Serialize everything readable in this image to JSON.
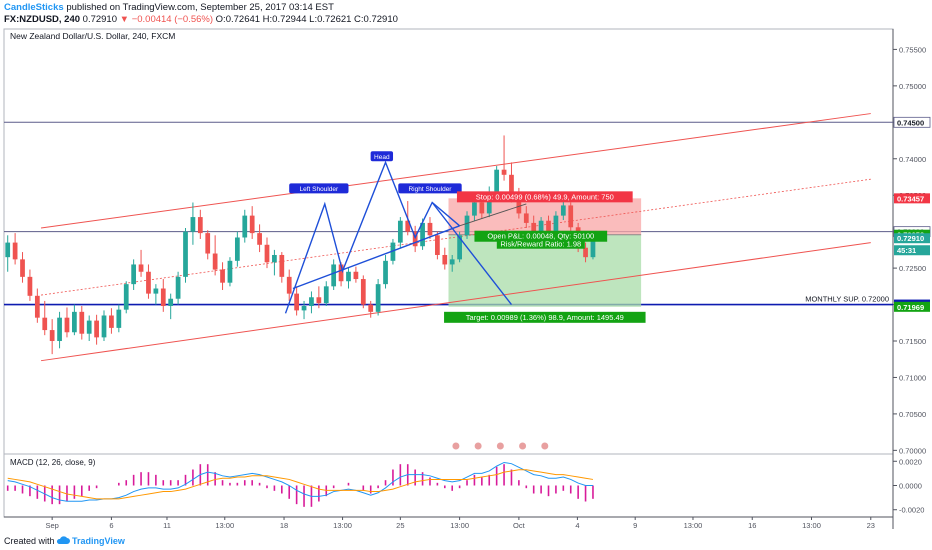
{
  "header": {
    "author": "CandleSticks",
    "published": "published on TradingView.com, September 25, 2017 03:14 EST",
    "symbol": "FX:NZDUSD, 240",
    "last": "0.72910",
    "change": "−0.00414 (−0.56%)",
    "ohlc": "O:0.72641 H:0.72944 L:0.72621 C:0.72910"
  },
  "footer": {
    "created": "Created with",
    "brand": "TradingView"
  },
  "colors": {
    "up": "#26a69a",
    "down": "#ef5350",
    "channel": "#ef5350",
    "pattern": "#1e4fd8",
    "support": "#0d1bb0",
    "stop_zone": "#f8a5a5",
    "target_zone": "#a8dca8",
    "macd": "#2196f3",
    "signal": "#ff9800"
  },
  "chart_data": [
    {
      "type": "candlestick",
      "title": "New Zealand Dollar/U.S. Dollar, 240, FXCM",
      "ylim": [
        0.6995,
        0.7578
      ],
      "price_ticks": [
        "0.75500",
        "0.75000",
        "0.74500",
        "0.74000",
        "0.73500",
        "0.73000",
        "0.72500",
        "0.72000",
        "0.71500",
        "0.71000",
        "0.70500",
        "0.70000"
      ],
      "price_tick_values": [
        0.755,
        0.75,
        0.745,
        0.74,
        0.735,
        0.73,
        0.725,
        0.72,
        0.715,
        0.71,
        0.705,
        0.7
      ],
      "time_labels": [
        "Sep",
        "6",
        "11",
        "13:00",
        "18",
        "13:00",
        "25",
        "13:00",
        "Oct",
        "4",
        "9",
        "13:00",
        "16",
        "13:00",
        "23"
      ],
      "time_label_positions": [
        6.5,
        14.5,
        22,
        29.8,
        37.8,
        45.7,
        53.5,
        61.5,
        69.5,
        77.4,
        85.2,
        93,
        101,
        109,
        117
      ],
      "bar_count": 120,
      "candles": [
        {
          "o": 0.7265,
          "h": 0.7295,
          "l": 0.7245,
          "c": 0.7285
        },
        {
          "o": 0.7285,
          "h": 0.7298,
          "l": 0.7255,
          "c": 0.7262
        },
        {
          "o": 0.7262,
          "h": 0.7272,
          "l": 0.723,
          "c": 0.7238
        },
        {
          "o": 0.7238,
          "h": 0.7248,
          "l": 0.7205,
          "c": 0.7212
        },
        {
          "o": 0.7212,
          "h": 0.7222,
          "l": 0.7175,
          "c": 0.7182
        },
        {
          "o": 0.7182,
          "h": 0.7205,
          "l": 0.7158,
          "c": 0.7165
        },
        {
          "o": 0.7165,
          "h": 0.718,
          "l": 0.7132,
          "c": 0.715
        },
        {
          "o": 0.715,
          "h": 0.719,
          "l": 0.714,
          "c": 0.7182
        },
        {
          "o": 0.7182,
          "h": 0.7196,
          "l": 0.7155,
          "c": 0.7162
        },
        {
          "o": 0.7162,
          "h": 0.72,
          "l": 0.7158,
          "c": 0.719
        },
        {
          "o": 0.719,
          "h": 0.7198,
          "l": 0.7152,
          "c": 0.716
        },
        {
          "o": 0.716,
          "h": 0.7185,
          "l": 0.715,
          "c": 0.7178
        },
        {
          "o": 0.7178,
          "h": 0.7186,
          "l": 0.7145,
          "c": 0.7155
        },
        {
          "o": 0.7155,
          "h": 0.7192,
          "l": 0.715,
          "c": 0.7185
        },
        {
          "o": 0.7185,
          "h": 0.7195,
          "l": 0.716,
          "c": 0.7168
        },
        {
          "o": 0.7168,
          "h": 0.72,
          "l": 0.7162,
          "c": 0.7193
        },
        {
          "o": 0.7193,
          "h": 0.7232,
          "l": 0.7188,
          "c": 0.7228
        },
        {
          "o": 0.7228,
          "h": 0.7262,
          "l": 0.722,
          "c": 0.7255
        },
        {
          "o": 0.7255,
          "h": 0.7275,
          "l": 0.7238,
          "c": 0.7245
        },
        {
          "o": 0.7245,
          "h": 0.7255,
          "l": 0.7208,
          "c": 0.7215
        },
        {
          "o": 0.7215,
          "h": 0.7228,
          "l": 0.72,
          "c": 0.7222
        },
        {
          "o": 0.7222,
          "h": 0.7235,
          "l": 0.719,
          "c": 0.7198
        },
        {
          "o": 0.7198,
          "h": 0.7215,
          "l": 0.718,
          "c": 0.7208
        },
        {
          "o": 0.7208,
          "h": 0.7245,
          "l": 0.72,
          "c": 0.7238
        },
        {
          "o": 0.7238,
          "h": 0.7305,
          "l": 0.723,
          "c": 0.73
        },
        {
          "o": 0.73,
          "h": 0.734,
          "l": 0.7282,
          "c": 0.732
        },
        {
          "o": 0.732,
          "h": 0.733,
          "l": 0.729,
          "c": 0.7298
        },
        {
          "o": 0.7298,
          "h": 0.7302,
          "l": 0.7262,
          "c": 0.727
        },
        {
          "o": 0.727,
          "h": 0.7295,
          "l": 0.724,
          "c": 0.7248
        },
        {
          "o": 0.7248,
          "h": 0.7258,
          "l": 0.722,
          "c": 0.723
        },
        {
          "o": 0.723,
          "h": 0.7265,
          "l": 0.7225,
          "c": 0.726
        },
        {
          "o": 0.726,
          "h": 0.73,
          "l": 0.7252,
          "c": 0.7292
        },
        {
          "o": 0.7292,
          "h": 0.733,
          "l": 0.7285,
          "c": 0.7322
        },
        {
          "o": 0.7322,
          "h": 0.7335,
          "l": 0.729,
          "c": 0.7298
        },
        {
          "o": 0.7298,
          "h": 0.731,
          "l": 0.7272,
          "c": 0.7282
        },
        {
          "o": 0.7282,
          "h": 0.7292,
          "l": 0.725,
          "c": 0.7258
        },
        {
          "o": 0.7258,
          "h": 0.7275,
          "l": 0.724,
          "c": 0.7268
        },
        {
          "o": 0.7268,
          "h": 0.7272,
          "l": 0.723,
          "c": 0.7238
        },
        {
          "o": 0.7238,
          "h": 0.7248,
          "l": 0.7205,
          "c": 0.7215
        },
        {
          "o": 0.7215,
          "h": 0.7225,
          "l": 0.7185,
          "c": 0.7192
        },
        {
          "o": 0.7192,
          "h": 0.7205,
          "l": 0.718,
          "c": 0.7198
        },
        {
          "o": 0.7198,
          "h": 0.7218,
          "l": 0.7188,
          "c": 0.721
        },
        {
          "o": 0.721,
          "h": 0.7225,
          "l": 0.7195,
          "c": 0.7202
        },
        {
          "o": 0.7202,
          "h": 0.7232,
          "l": 0.7198,
          "c": 0.7225
        },
        {
          "o": 0.7225,
          "h": 0.7262,
          "l": 0.722,
          "c": 0.7255
        },
        {
          "o": 0.7255,
          "h": 0.7258,
          "l": 0.7225,
          "c": 0.7232
        },
        {
          "o": 0.7232,
          "h": 0.725,
          "l": 0.7222,
          "c": 0.7245
        },
        {
          "o": 0.7245,
          "h": 0.7252,
          "l": 0.723,
          "c": 0.7235
        },
        {
          "o": 0.7235,
          "h": 0.724,
          "l": 0.7195,
          "c": 0.72
        },
        {
          "o": 0.72,
          "h": 0.7205,
          "l": 0.7182,
          "c": 0.719
        },
        {
          "o": 0.719,
          "h": 0.7235,
          "l": 0.7185,
          "c": 0.7228
        },
        {
          "o": 0.7228,
          "h": 0.7268,
          "l": 0.7222,
          "c": 0.726
        },
        {
          "o": 0.726,
          "h": 0.729,
          "l": 0.7255,
          "c": 0.7285
        },
        {
          "o": 0.7285,
          "h": 0.732,
          "l": 0.7278,
          "c": 0.7315
        },
        {
          "o": 0.7315,
          "h": 0.7342,
          "l": 0.7295,
          "c": 0.73
        },
        {
          "o": 0.73,
          "h": 0.7308,
          "l": 0.7272,
          "c": 0.728
        },
        {
          "o": 0.728,
          "h": 0.7318,
          "l": 0.7275,
          "c": 0.7312
        },
        {
          "o": 0.7312,
          "h": 0.732,
          "l": 0.729,
          "c": 0.7295
        },
        {
          "o": 0.7295,
          "h": 0.73,
          "l": 0.7262,
          "c": 0.7268
        },
        {
          "o": 0.7268,
          "h": 0.7278,
          "l": 0.7248,
          "c": 0.7255
        },
        {
          "o": 0.7255,
          "h": 0.7268,
          "l": 0.7245,
          "c": 0.7262
        },
        {
          "o": 0.7262,
          "h": 0.73,
          "l": 0.7258,
          "c": 0.7295
        },
        {
          "o": 0.7295,
          "h": 0.7328,
          "l": 0.729,
          "c": 0.7322
        },
        {
          "o": 0.7322,
          "h": 0.7345,
          "l": 0.7315,
          "c": 0.734
        },
        {
          "o": 0.734,
          "h": 0.7348,
          "l": 0.7318,
          "c": 0.7325
        },
        {
          "o": 0.7325,
          "h": 0.7362,
          "l": 0.732,
          "c": 0.7355
        },
        {
          "o": 0.7355,
          "h": 0.739,
          "l": 0.735,
          "c": 0.7385
        },
        {
          "o": 0.7385,
          "h": 0.7432,
          "l": 0.737,
          "c": 0.7378
        },
        {
          "o": 0.7378,
          "h": 0.7395,
          "l": 0.734,
          "c": 0.7348
        },
        {
          "o": 0.7348,
          "h": 0.736,
          "l": 0.7318,
          "c": 0.7325
        },
        {
          "o": 0.7325,
          "h": 0.7335,
          "l": 0.7305,
          "c": 0.7312
        },
        {
          "o": 0.7312,
          "h": 0.7322,
          "l": 0.729,
          "c": 0.7298
        },
        {
          "o": 0.7298,
          "h": 0.732,
          "l": 0.7292,
          "c": 0.7315
        },
        {
          "o": 0.7315,
          "h": 0.7322,
          "l": 0.729,
          "c": 0.7296
        },
        {
          "o": 0.7296,
          "h": 0.7328,
          "l": 0.7292,
          "c": 0.7322
        },
        {
          "o": 0.7322,
          "h": 0.7342,
          "l": 0.7316,
          "c": 0.7336
        },
        {
          "o": 0.7336,
          "h": 0.734,
          "l": 0.73,
          "c": 0.7306
        },
        {
          "o": 0.7306,
          "h": 0.7312,
          "l": 0.7272,
          "c": 0.7278
        },
        {
          "o": 0.7278,
          "h": 0.7285,
          "l": 0.7258,
          "c": 0.7265
        },
        {
          "o": 0.7265,
          "h": 0.7294,
          "l": 0.7262,
          "c": 0.7291
        }
      ],
      "horizontal_levels": [
        {
          "label": "MONTHLY SUP. 0.72000",
          "price": 0.72
        },
        {
          "price": 0.745
        },
        {
          "price": 0.73
        }
      ],
      "price_labels": [
        {
          "text": "0.74500",
          "price": 0.745,
          "style": "outline"
        },
        {
          "text": "0.73457",
          "price": 0.73457,
          "style": "red"
        },
        {
          "text": "0.73000",
          "price": 0.73,
          "style": "outline"
        },
        {
          "text": "0.72958",
          "price": 0.72958,
          "style": "green"
        },
        {
          "text": "0.72910",
          "price": 0.7291,
          "style": "teal"
        },
        {
          "text": "45:31",
          "price": 0.72745,
          "style": "teal"
        },
        {
          "text": "0.72000",
          "price": 0.72,
          "style": "support"
        },
        {
          "text": "0.71969",
          "price": 0.71969,
          "style": "green"
        }
      ],
      "channel": {
        "upper": [
          {
            "bar": 5,
            "price": 0.7305
          },
          {
            "bar": 117,
            "price": 0.7462
          }
        ],
        "middle": [
          {
            "bar": 5,
            "price": 0.7213
          },
          {
            "bar": 117,
            "price": 0.7372
          }
        ],
        "lower": [
          {
            "bar": 5,
            "price": 0.7123
          },
          {
            "bar": 117,
            "price": 0.7285
          }
        ]
      },
      "pattern_lines": {
        "shoulders": [
          {
            "bar": 38,
            "price": 0.7188
          },
          {
            "bar": 43.3,
            "price": 0.7338
          },
          {
            "bar": 45.7,
            "price": 0.7246
          },
          {
            "bar": 51.5,
            "price": 0.7395
          },
          {
            "bar": 55.5,
            "price": 0.7292
          },
          {
            "bar": 57.8,
            "price": 0.734
          },
          {
            "bar": 61.5,
            "price": 0.7308
          }
        ],
        "neckline": [
          {
            "bar": 39,
            "price": 0.7222
          },
          {
            "bar": 61.5,
            "price": 0.7308
          }
        ],
        "projection": [
          {
            "bar": 57.8,
            "price": 0.734
          },
          {
            "bar": 68.5,
            "price": 0.72
          }
        ],
        "extension": [
          {
            "bar": 61.5,
            "price": 0.7308
          },
          {
            "bar": 70.5,
            "price": 0.7338
          }
        ]
      },
      "pattern_labels": [
        {
          "text": "Left Shoulder",
          "bar": 42.5,
          "price": 0.7358
        },
        {
          "text": "Head",
          "bar": 51,
          "price": 0.7402
        },
        {
          "text": "Right Shoulder",
          "bar": 57.5,
          "price": 0.7358
        }
      ],
      "position": {
        "entry": 0.72958,
        "stop": 0.73457,
        "target": 0.71969,
        "start_bar": 60,
        "end_bar": 86,
        "stop_label": "Stop: 0.00499 (0.68%) 49.9, Amount: 750",
        "pnl_label": "Open P&L: 0.00048, Qty: 50100",
        "rr_label": "Risk/Reward Ratio: 1.98",
        "target_label": "Target: 0.00989 (1.36%) 98.9, Amount: 1495.49"
      }
    },
    {
      "type": "line",
      "title": "MACD (12, 26, close, 9)",
      "ylim": [
        -0.0026,
        0.0026
      ],
      "ticks": [
        "0.0020",
        "0.0000",
        "-0.0020"
      ],
      "tick_values": [
        0.002,
        0.0,
        -0.002
      ],
      "series": [
        {
          "values": [
            0.0004,
            0.0003,
            0.0001,
            -0.0001,
            -0.0004,
            -0.0007,
            -0.001,
            -0.0012,
            -0.0013,
            -0.0013,
            -0.0013,
            -0.0012,
            -0.0012,
            -0.0011,
            -0.0011,
            -0.001,
            -0.0008,
            -0.0005,
            -0.0003,
            -0.0002,
            -0.0002,
            -0.0003,
            -0.0003,
            -0.0002,
            0.0001,
            0.0005,
            0.0009,
            0.0011,
            0.001,
            0.0008,
            0.0007,
            0.0008,
            0.0009,
            0.001,
            0.0009,
            0.0007,
            0.0005,
            0.0003,
            0.0,
            -0.0004,
            -0.0007,
            -0.0009,
            -0.0009,
            -0.0008,
            -0.0005,
            -0.0004,
            -0.0003,
            -0.0004,
            -0.0006,
            -0.0008,
            -0.0006,
            -0.0002,
            0.0003,
            0.0007,
            0.0009,
            0.0009,
            0.0009,
            0.0008,
            0.0006,
            0.0004,
            0.0003,
            0.0004,
            0.0007,
            0.001,
            0.001,
            0.0012,
            0.0016,
            0.0019,
            0.0018,
            0.0015,
            0.0012,
            0.0009,
            0.0008,
            0.0006,
            0.0006,
            0.0007,
            0.0005,
            0.0002,
            0.0,
            0.0
          ]
        },
        {
          "values": [
            0.0006,
            0.0005,
            0.0004,
            0.0003,
            0.0001,
            -0.0001,
            -0.0003,
            -0.0005,
            -0.0007,
            -0.0008,
            -0.0009,
            -0.001,
            -0.0011,
            -0.0011,
            -0.0011,
            -0.0011,
            -0.001,
            -0.0009,
            -0.0008,
            -0.0007,
            -0.0006,
            -0.0005,
            -0.0005,
            -0.0004,
            -0.0003,
            -0.0001,
            0.0001,
            0.0003,
            0.0005,
            0.0006,
            0.0006,
            0.0007,
            0.0007,
            0.0008,
            0.0008,
            0.0008,
            0.0007,
            0.0006,
            0.0005,
            0.0003,
            0.0001,
            -0.0001,
            -0.0003,
            -0.0004,
            -0.0004,
            -0.0004,
            -0.0004,
            -0.0004,
            -0.0004,
            -0.0005,
            -0.0005,
            -0.0004,
            -0.0003,
            -0.0001,
            0.0001,
            0.0003,
            0.0004,
            0.0005,
            0.0005,
            0.0005,
            0.0005,
            0.0005,
            0.0005,
            0.0006,
            0.0007,
            0.0008,
            0.0009,
            0.0011,
            0.0012,
            0.0013,
            0.0013,
            0.0012,
            0.0011,
            0.001,
            0.0009,
            0.0009,
            0.0008,
            0.0007,
            0.0006,
            0.0005
          ]
        }
      ],
      "histogram_equals": "macd minus signal"
    }
  ]
}
